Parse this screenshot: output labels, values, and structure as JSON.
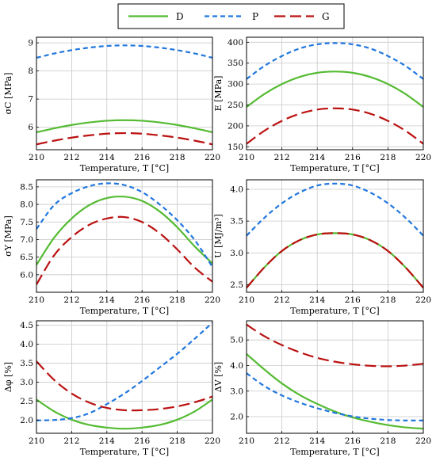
{
  "legend": [
    {
      "name": "D",
      "color": "#55bb33",
      "dash": "solid"
    },
    {
      "name": "P",
      "color": "#2277dd",
      "dash": "short"
    },
    {
      "name": "G",
      "color": "#bb1111",
      "dash": "long"
    }
  ],
  "chart_data": [
    {
      "type": "line",
      "xlabel": "Temperature, T [°C]",
      "ylabel": "σC [MPa]",
      "xlim": [
        210,
        220
      ],
      "xticks": [
        210,
        212,
        214,
        216,
        218,
        220
      ],
      "ylim": [
        5.2,
        9.2
      ],
      "yticks": [
        6,
        7,
        8,
        9
      ],
      "ytick_labels": [
        "6",
        "7",
        "8",
        "9"
      ],
      "grid": true,
      "x": [
        210,
        211,
        212,
        213,
        214,
        215,
        216,
        217,
        218,
        219,
        220
      ],
      "series": [
        {
          "name": "D",
          "values": [
            5.82,
            5.96,
            6.08,
            6.17,
            6.23,
            6.25,
            6.23,
            6.17,
            6.08,
            5.96,
            5.82
          ]
        },
        {
          "name": "P",
          "values": [
            8.47,
            8.62,
            8.74,
            8.83,
            8.89,
            8.91,
            8.89,
            8.83,
            8.74,
            8.62,
            8.47
          ]
        },
        {
          "name": "G",
          "values": [
            5.39,
            5.52,
            5.63,
            5.71,
            5.77,
            5.79,
            5.77,
            5.71,
            5.63,
            5.52,
            5.39
          ]
        }
      ]
    },
    {
      "type": "line",
      "xlabel": "Temperature, T [°C]",
      "ylabel": "E [MPa]",
      "xlim": [
        210,
        220
      ],
      "xticks": [
        210,
        212,
        214,
        216,
        218,
        220
      ],
      "ylim": [
        143,
        412
      ],
      "yticks": [
        150,
        200,
        250,
        300,
        350,
        400
      ],
      "ytick_labels": [
        "150",
        "200",
        "250",
        "300",
        "350",
        "400"
      ],
      "grid": true,
      "x": [
        210,
        211,
        212,
        213,
        214,
        215,
        216,
        217,
        218,
        219,
        220
      ],
      "series": [
        {
          "name": "D",
          "values": [
            245,
            276,
            300,
            317,
            327,
            330,
            327,
            317,
            300,
            276,
            245
          ]
        },
        {
          "name": "P",
          "values": [
            312,
            343,
            367,
            385,
            395,
            398,
            395,
            385,
            367,
            343,
            312
          ]
        },
        {
          "name": "G",
          "values": [
            157,
            188,
            212,
            229,
            239,
            242,
            239,
            229,
            212,
            188,
            157
          ]
        }
      ]
    },
    {
      "type": "line",
      "xlabel": "Temperature, T [°C]",
      "ylabel": "σY [MPa]",
      "xlim": [
        210,
        220
      ],
      "xticks": [
        210,
        212,
        214,
        216,
        218,
        220
      ],
      "ylim": [
        5.5,
        8.7
      ],
      "yticks": [
        6,
        6.5,
        7,
        7.5,
        8,
        8.5
      ],
      "ytick_labels": [
        "6.0",
        "6.5",
        "7.0",
        "7.5",
        "8.0",
        "8.5"
      ],
      "grid": true,
      "x": [
        210,
        211,
        212,
        213,
        214,
        215,
        216,
        217,
        218,
        219,
        220
      ],
      "series": [
        {
          "name": "D",
          "values": [
            6.28,
            7.05,
            7.6,
            7.98,
            8.18,
            8.22,
            8.1,
            7.8,
            7.35,
            6.8,
            6.32
          ]
        },
        {
          "name": "P",
          "values": [
            7.3,
            7.98,
            8.32,
            8.52,
            8.6,
            8.55,
            8.35,
            8.0,
            7.55,
            6.98,
            6.22
          ]
        },
        {
          "name": "G",
          "values": [
            5.72,
            6.55,
            7.07,
            7.42,
            7.6,
            7.64,
            7.5,
            7.18,
            6.72,
            6.2,
            5.8
          ]
        }
      ]
    },
    {
      "type": "line",
      "xlabel": "Temperature, T [°C]",
      "ylabel": "U [MJ/m³]",
      "xlim": [
        210,
        220
      ],
      "xticks": [
        210,
        212,
        214,
        216,
        218,
        220
      ],
      "ylim": [
        2.38,
        4.15
      ],
      "yticks": [
        2.5,
        3,
        3.5,
        4
      ],
      "ytick_labels": [
        "2.5",
        "3.0",
        "3.5",
        "4.0"
      ],
      "grid": true,
      "x": [
        210,
        211,
        212,
        213,
        214,
        215,
        216,
        217,
        218,
        219,
        220
      ],
      "series": [
        {
          "name": "D",
          "values": [
            2.45,
            2.77,
            3.03,
            3.2,
            3.29,
            3.31,
            3.29,
            3.2,
            3.03,
            2.77,
            2.45
          ]
        },
        {
          "name": "P",
          "values": [
            3.27,
            3.55,
            3.78,
            3.95,
            4.06,
            4.09,
            4.06,
            3.95,
            3.78,
            3.55,
            3.27
          ]
        },
        {
          "name": "G",
          "values": [
            2.45,
            2.77,
            3.03,
            3.2,
            3.29,
            3.31,
            3.29,
            3.2,
            3.03,
            2.77,
            2.45
          ]
        }
      ]
    },
    {
      "type": "line",
      "xlabel": "Temperature, T [°C]",
      "ylabel": "Δφ [%]",
      "xlim": [
        210,
        220
      ],
      "xticks": [
        210,
        212,
        214,
        216,
        218,
        220
      ],
      "ylim": [
        1.65,
        4.62
      ],
      "yticks": [
        2,
        2.5,
        3,
        3.5,
        4,
        4.5
      ],
      "ytick_labels": [
        "2.0",
        "2.5",
        "3.0",
        "3.5",
        "4.0",
        "4.5"
      ],
      "grid": true,
      "x": [
        210,
        211,
        212,
        213,
        214,
        215,
        216,
        217,
        218,
        219,
        220
      ],
      "series": [
        {
          "name": "D",
          "values": [
            2.54,
            2.23,
            2.01,
            1.87,
            1.8,
            1.77,
            1.8,
            1.87,
            2.01,
            2.23,
            2.54
          ]
        },
        {
          "name": "P",
          "values": [
            1.99,
            2.0,
            2.05,
            2.18,
            2.42,
            2.7,
            3.03,
            3.39,
            3.75,
            4.15,
            4.57
          ]
        },
        {
          "name": "G",
          "values": [
            3.55,
            3.06,
            2.7,
            2.46,
            2.32,
            2.26,
            2.26,
            2.29,
            2.36,
            2.47,
            2.62
          ]
        }
      ]
    },
    {
      "type": "line",
      "xlabel": "Temperature, T [°C]",
      "ylabel": "ΔV [%]",
      "xlim": [
        210,
        220
      ],
      "xticks": [
        210,
        212,
        214,
        216,
        218,
        220
      ],
      "ylim": [
        1.35,
        5.75
      ],
      "yticks": [
        2,
        3,
        4,
        5
      ],
      "ytick_labels": [
        "2.0",
        "3.0",
        "4.0",
        "5.0"
      ],
      "grid": true,
      "x": [
        210,
        211,
        212,
        213,
        214,
        215,
        216,
        217,
        218,
        219,
        220
      ],
      "series": [
        {
          "name": "D",
          "values": [
            4.45,
            3.85,
            3.3,
            2.85,
            2.5,
            2.2,
            1.97,
            1.8,
            1.67,
            1.58,
            1.53
          ]
        },
        {
          "name": "P",
          "values": [
            3.7,
            3.2,
            2.83,
            2.55,
            2.33,
            2.15,
            2.01,
            1.92,
            1.87,
            1.85,
            1.85
          ]
        },
        {
          "name": "G",
          "values": [
            5.6,
            5.15,
            4.8,
            4.52,
            4.3,
            4.15,
            4.05,
            3.99,
            3.97,
            4.0,
            4.07
          ]
        }
      ]
    }
  ]
}
